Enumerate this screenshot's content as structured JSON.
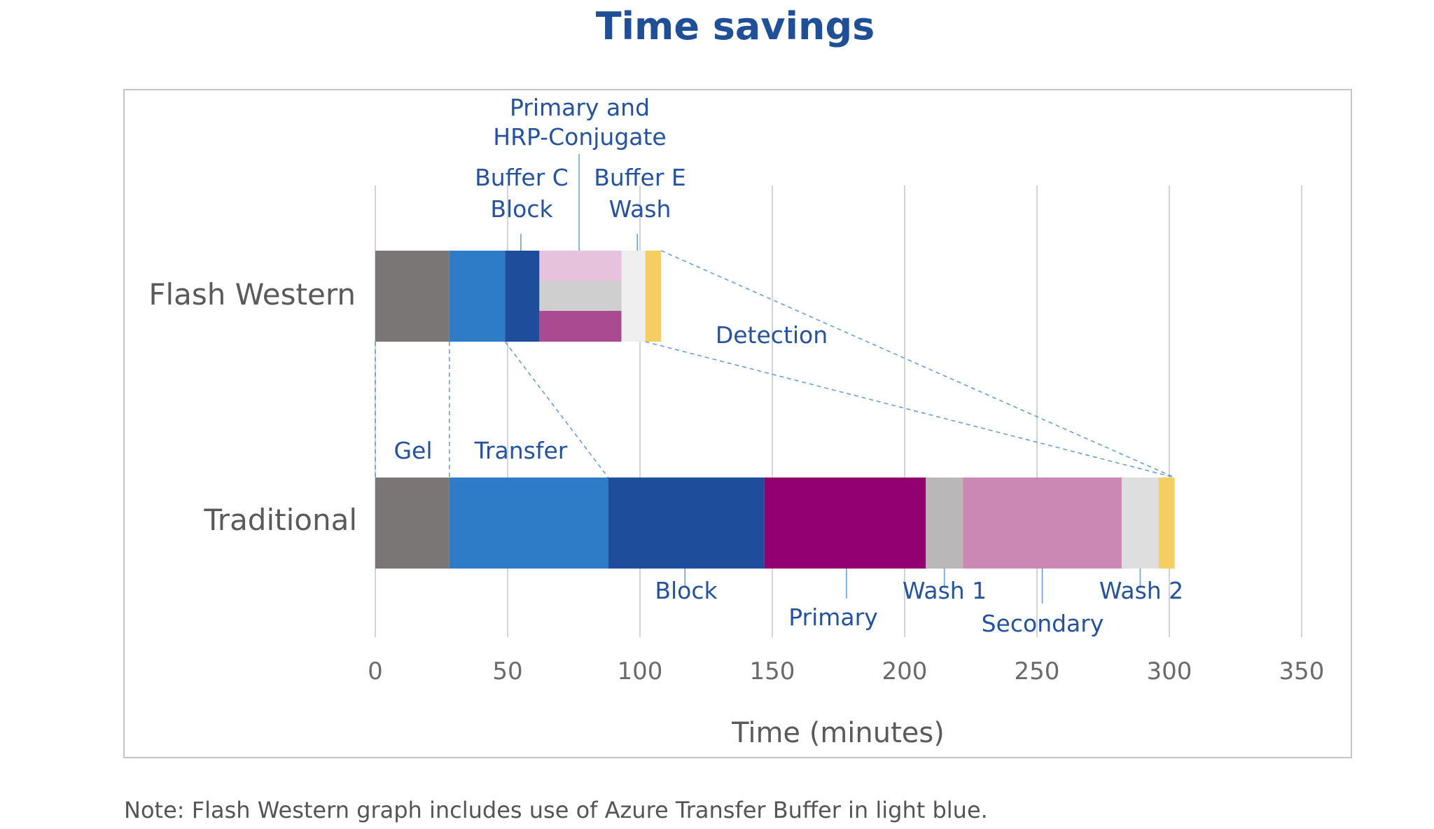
{
  "chart_data": {
    "type": "bar",
    "orientation": "horizontal",
    "stacked": true,
    "title": "Time savings",
    "xlabel": "Time (minutes)",
    "ylabel": "",
    "xlim": [
      0,
      350
    ],
    "x_ticks": [
      0,
      50,
      100,
      150,
      200,
      250,
      300,
      350
    ],
    "grid": "vertical",
    "legend": "none",
    "categories": [
      "Flash Western",
      "Traditional"
    ],
    "rows": [
      {
        "category": "Flash Western",
        "segments": [
          {
            "start": 0,
            "end": 28,
            "color": "#7a7676"
          },
          {
            "start": 28,
            "end": 49,
            "color": "#2e7cc8"
          },
          {
            "start": 49,
            "end": 62,
            "color": "#1e4d9c"
          },
          {
            "start": 62,
            "end": 93,
            "color": "#e6c2dc",
            "lane": "top"
          },
          {
            "start": 62,
            "end": 93,
            "color": "#cfcfcf",
            "lane": "middle"
          },
          {
            "start": 62,
            "end": 93,
            "color": "#aa4a90",
            "lane": "bottom"
          },
          {
            "start": 93,
            "end": 102,
            "color": "#efefef"
          },
          {
            "start": 102,
            "end": 108,
            "color": "#f5cd60"
          }
        ]
      },
      {
        "category": "Traditional",
        "segments": [
          {
            "start": 0,
            "end": 28,
            "color": "#7a7676"
          },
          {
            "start": 28,
            "end": 88,
            "color": "#2e7cc8"
          },
          {
            "start": 88,
            "end": 147,
            "color": "#1e4d9c"
          },
          {
            "start": 147,
            "end": 208,
            "color": "#920070"
          },
          {
            "start": 208,
            "end": 222,
            "color": "#b9b7b7"
          },
          {
            "start": 222,
            "end": 282,
            "color": "#cc88b4"
          },
          {
            "start": 282,
            "end": 296,
            "color": "#dedede"
          },
          {
            "start": 296,
            "end": 302,
            "color": "#f5cd60"
          }
        ]
      }
    ],
    "annotations": [
      {
        "text": [
          "Primary and",
          "HRP-Conjugate"
        ],
        "x": 77
      },
      {
        "text": [
          "Buffer C",
          "Block"
        ],
        "x": 55
      },
      {
        "text": [
          "Buffer E",
          "Wash"
        ],
        "x": 99
      },
      {
        "text": [
          "Detection"
        ],
        "x": 150
      },
      {
        "text": [
          "Gel"
        ],
        "x": 14
      },
      {
        "text": [
          "Transfer"
        ],
        "x": 55
      },
      {
        "text": [
          "Block"
        ],
        "x": 117
      },
      {
        "text": [
          "Primary"
        ],
        "x": 178
      },
      {
        "text": [
          "Wash 1"
        ],
        "x": 215
      },
      {
        "text": [
          "Secondary"
        ],
        "x": 252
      },
      {
        "text": [
          "Wash 2"
        ],
        "x": 289
      }
    ],
    "note": "Note: Flash Western graph includes use of Azure Transfer Buffer in light blue."
  }
}
